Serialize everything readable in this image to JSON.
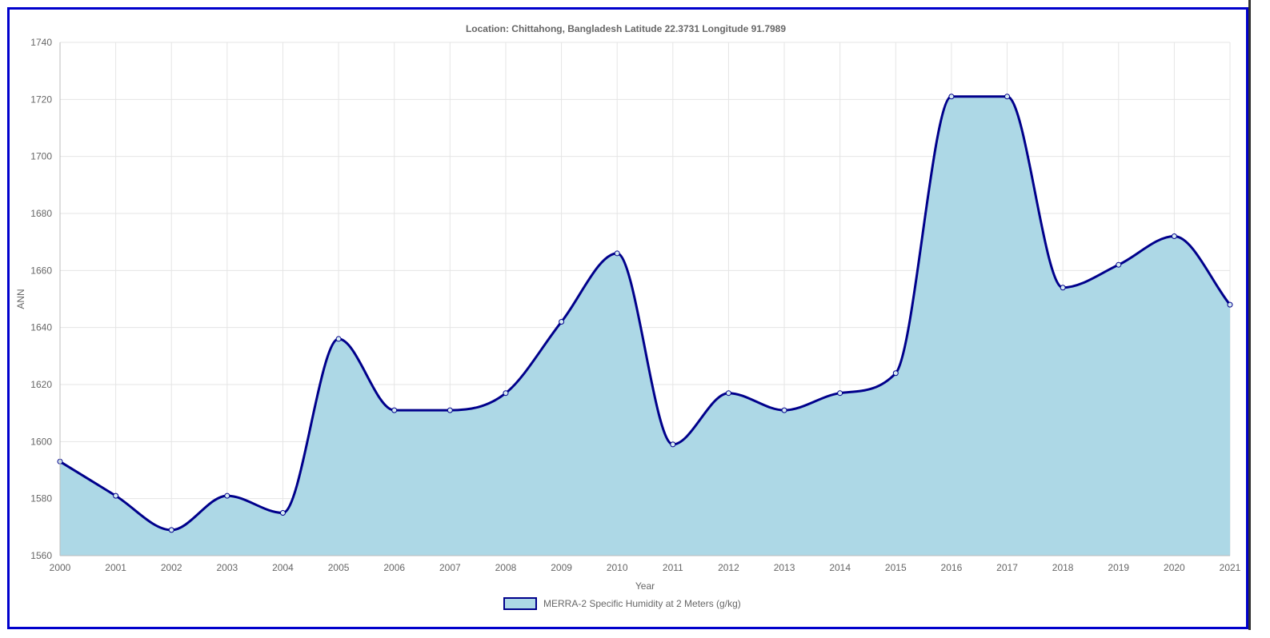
{
  "chart_data": {
    "type": "area",
    "title": "Location: Chittahong, Bangladesh Latitude  22.3731   Longitude 91.7989",
    "xlabel": "Year",
    "ylabel": "ANN",
    "ylim": [
      1560,
      1740
    ],
    "yticks": [
      1560,
      1580,
      1600,
      1620,
      1640,
      1660,
      1680,
      1700,
      1720,
      1740
    ],
    "xlim": [
      2000,
      2021
    ],
    "xtick_labels": [
      "2000",
      "2001",
      "2002",
      "2003",
      "2004",
      "2005",
      "2006",
      "2007",
      "2008",
      "2009",
      "2010",
      "2011",
      "2012",
      "2013",
      "2014",
      "2015",
      "2016",
      "2017",
      "2018",
      "2019",
      "2020",
      "2021"
    ],
    "grid": true,
    "legend_position": "bottom",
    "series": [
      {
        "name": "MERRA-2 Specific Humidity at 2 Meters (g/kg)",
        "fill_color": "#add8e6",
        "line_color": "#00008b",
        "x": [
          2000,
          2001,
          2002,
          2003,
          2004,
          2005,
          2006,
          2007,
          2008,
          2009,
          2010,
          2011,
          2012,
          2013,
          2014,
          2015,
          2016,
          2017,
          2018,
          2019,
          2020,
          2021
        ],
        "values": [
          1593,
          1581,
          1569,
          1581,
          1575,
          1636,
          1611,
          1611,
          1617,
          1642,
          1666,
          1599,
          1617,
          1611,
          1617,
          1624,
          1721,
          1721,
          1654,
          1662,
          1672,
          1648
        ]
      }
    ]
  }
}
